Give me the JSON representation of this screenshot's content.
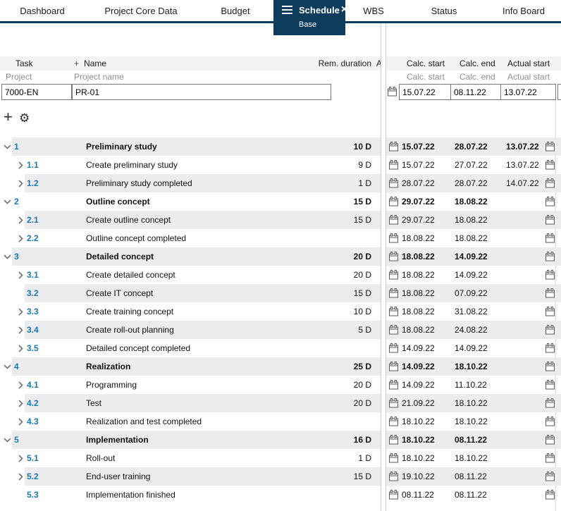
{
  "tabs": [
    {
      "label": "Dashboard",
      "active": false
    },
    {
      "label": "Project Core Data",
      "active": false
    },
    {
      "label": "Budget",
      "active": false
    },
    {
      "label": "Schedule",
      "sublabel": "Base",
      "active": true
    },
    {
      "label": "WBS",
      "active": false
    },
    {
      "label": "Status",
      "active": false
    },
    {
      "label": "Info Board",
      "active": false
    }
  ],
  "colors": {
    "accent_navy": "#0e3c5c",
    "link_blue": "#1779b2",
    "row_shade": "#ececee"
  },
  "grid": {
    "headers_left": {
      "task": "Task",
      "plus": "+",
      "name": "Name",
      "rem_duration": "Rem. duration",
      "a_partial": "A"
    },
    "subheaders_left": {
      "task": "Project",
      "name": "Project name"
    },
    "headers_right": {
      "calc_start": "Calc. start",
      "calc_end": "Calc. end",
      "actual_start": "Actual start"
    },
    "subheaders_right": {
      "calc_start": "Calc. start",
      "calc_end": "Calc. end",
      "actual_start": "Actual start"
    },
    "project": {
      "task": "7000-EN",
      "name": "PR-01",
      "calc_start": "15.07.22",
      "calc_end": "08.11.22",
      "actual_start": "13.07.22"
    }
  },
  "toolbar": {
    "add_label": "+",
    "settings_icon": "gear"
  },
  "rows": [
    {
      "num": "1",
      "name": "Preliminary study",
      "duration": "10 D",
      "calc_start": "15.07.22",
      "calc_end": "28.07.22",
      "actual_start": "13.07.22",
      "level": 1,
      "chevron": "down",
      "bold": true
    },
    {
      "num": "1.1",
      "name": "Create preliminary study",
      "duration": "9 D",
      "calc_start": "15.07.22",
      "calc_end": "27.07.22",
      "actual_start": "13.07.22",
      "level": 2,
      "chevron": "right",
      "bold": false
    },
    {
      "num": "1.2",
      "name": "Preliminary study completed",
      "duration": "1 D",
      "calc_start": "28.07.22",
      "calc_end": "28.07.22",
      "actual_start": "14.07.22",
      "level": 2,
      "chevron": "right",
      "bold": false
    },
    {
      "num": "2",
      "name": "Outline concept",
      "duration": "15 D",
      "calc_start": "29.07.22",
      "calc_end": "18.08.22",
      "actual_start": "",
      "level": 1,
      "chevron": "down",
      "bold": true
    },
    {
      "num": "2.1",
      "name": "Create outline concept",
      "duration": "15 D",
      "calc_start": "29.07.22",
      "calc_end": "18.08.22",
      "actual_start": "",
      "level": 2,
      "chevron": "right",
      "bold": false
    },
    {
      "num": "2.2",
      "name": "Outline concept completed",
      "duration": "",
      "calc_start": "18.08.22",
      "calc_end": "18.08.22",
      "actual_start": "",
      "level": 2,
      "chevron": "right",
      "bold": false
    },
    {
      "num": "3",
      "name": "Detailed concept",
      "duration": "20 D",
      "calc_start": "18.08.22",
      "calc_end": "14.09.22",
      "actual_start": "",
      "level": 1,
      "chevron": "down",
      "bold": true
    },
    {
      "num": "3.1",
      "name": "Create detailed concept",
      "duration": "20 D",
      "calc_start": "18.08.22",
      "calc_end": "14.09.22",
      "actual_start": "",
      "level": 2,
      "chevron": "right",
      "bold": false
    },
    {
      "num": "3.2",
      "name": "Create IT concept",
      "duration": "15 D",
      "calc_start": "18.08.22",
      "calc_end": "07.09.22",
      "actual_start": "",
      "level": 2,
      "chevron": "none",
      "bold": false
    },
    {
      "num": "3.3",
      "name": "Create training concept",
      "duration": "10 D",
      "calc_start": "18.08.22",
      "calc_end": "31.08.22",
      "actual_start": "",
      "level": 2,
      "chevron": "right",
      "bold": false
    },
    {
      "num": "3.4",
      "name": "Create roll-out planning",
      "duration": "5 D",
      "calc_start": "18.08.22",
      "calc_end": "24.08.22",
      "actual_start": "",
      "level": 2,
      "chevron": "right",
      "bold": false
    },
    {
      "num": "3.5",
      "name": "Detailed concept completed",
      "duration": "",
      "calc_start": "14.09.22",
      "calc_end": "14.09.22",
      "actual_start": "",
      "level": 2,
      "chevron": "right",
      "bold": false
    },
    {
      "num": "4",
      "name": "Realization",
      "duration": "25 D",
      "calc_start": "14.09.22",
      "calc_end": "18.10.22",
      "actual_start": "",
      "level": 1,
      "chevron": "down",
      "bold": true
    },
    {
      "num": "4.1",
      "name": "Programming",
      "duration": "20 D",
      "calc_start": "14.09.22",
      "calc_end": "11.10.22",
      "actual_start": "",
      "level": 2,
      "chevron": "right",
      "bold": false
    },
    {
      "num": "4.2",
      "name": "Test",
      "duration": "20 D",
      "calc_start": "21.09.22",
      "calc_end": "18.10.22",
      "actual_start": "",
      "level": 2,
      "chevron": "right",
      "bold": false
    },
    {
      "num": "4.3",
      "name": "Realization and test completed",
      "duration": "",
      "calc_start": "18.10.22",
      "calc_end": "18.10.22",
      "actual_start": "",
      "level": 2,
      "chevron": "right",
      "bold": false
    },
    {
      "num": "5",
      "name": "Implementation",
      "duration": "16 D",
      "calc_start": "18.10.22",
      "calc_end": "08.11.22",
      "actual_start": "",
      "level": 1,
      "chevron": "down",
      "bold": true
    },
    {
      "num": "5.1",
      "name": "Roll-out",
      "duration": "1 D",
      "calc_start": "18.10.22",
      "calc_end": "18.10.22",
      "actual_start": "",
      "level": 2,
      "chevron": "right",
      "bold": false
    },
    {
      "num": "5.2",
      "name": "End-user training",
      "duration": "15 D",
      "calc_start": "19.10.22",
      "calc_end": "08.11.22",
      "actual_start": "",
      "level": 2,
      "chevron": "right",
      "bold": false
    },
    {
      "num": "5.3",
      "name": "Implementation finished",
      "duration": "",
      "calc_start": "08.11.22",
      "calc_end": "08.11.22",
      "actual_start": "",
      "level": 2,
      "chevron": "none",
      "bold": false
    }
  ]
}
